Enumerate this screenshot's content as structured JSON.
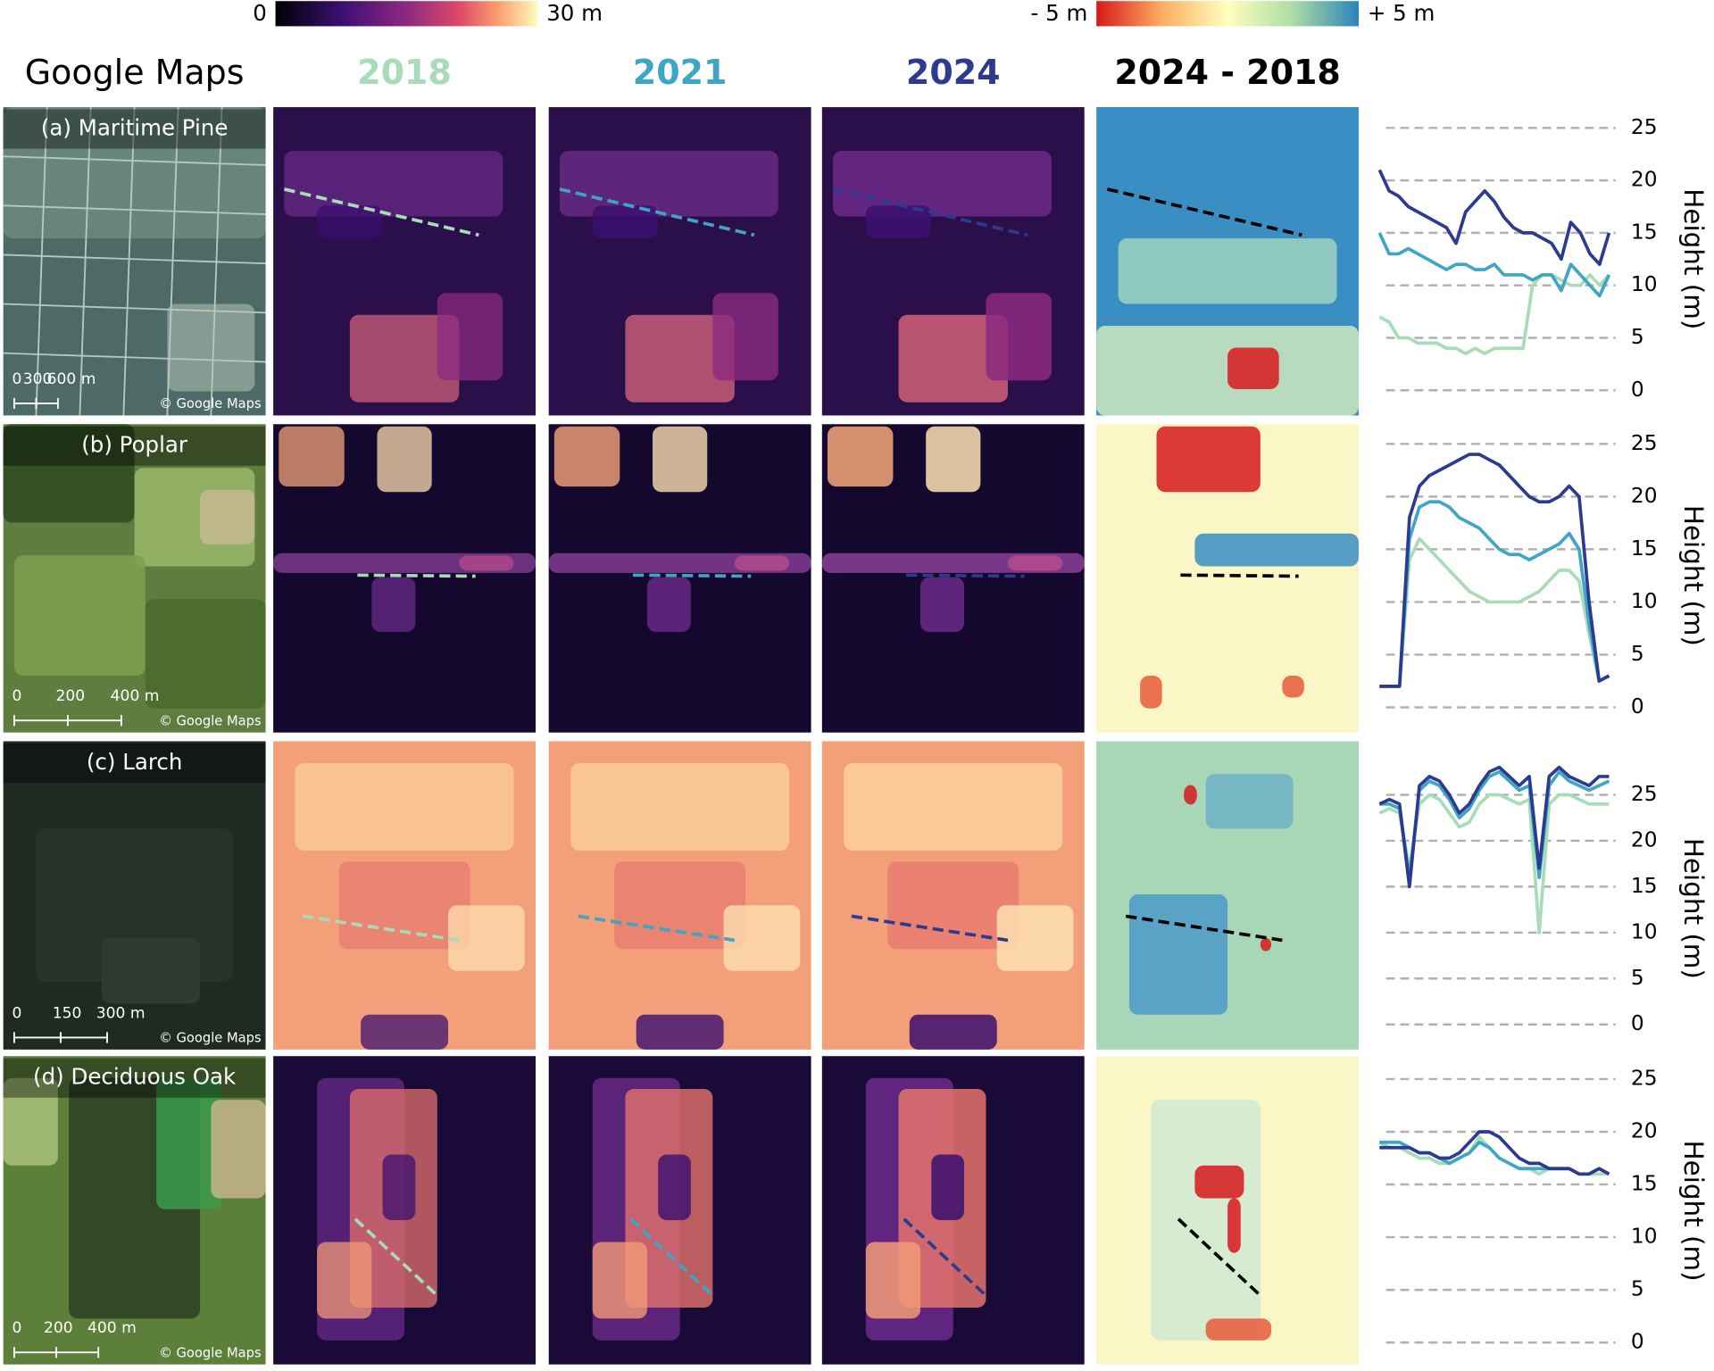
{
  "colorbars": [
    {
      "min_label": "0",
      "max_label": "30 m"
    },
    {
      "min_label": "- 5 m",
      "max_label": "+ 5 m"
    }
  ],
  "columns": [
    {
      "title": "Google Maps",
      "color": "#000000"
    },
    {
      "title": "2018",
      "color": "#a8dbb8"
    },
    {
      "title": "2021",
      "color": "#3fa5c4"
    },
    {
      "title": "2024",
      "color": "#2d3a8f"
    },
    {
      "title": "2024 - 2018",
      "color": "#000000"
    }
  ],
  "panels": [
    {
      "label": "(a) Maritime Pine",
      "scale_labels": [
        "0",
        "300",
        "600 m"
      ],
      "credit": "© Google Maps"
    },
    {
      "label": "(b) Poplar",
      "scale_labels": [
        "0",
        "200",
        "400 m"
      ],
      "credit": "© Google Maps"
    },
    {
      "label": "(c) Larch",
      "scale_labels": [
        "0",
        "150",
        "300 m"
      ],
      "credit": "© Google Maps"
    },
    {
      "label": "(d) Deciduous Oak",
      "scale_labels": [
        "0",
        "200",
        "400 m"
      ],
      "credit": "© Google Maps"
    }
  ],
  "chart_data": [
    {
      "type": "line",
      "y_label": "Height (m)",
      "ylim": [
        0,
        25
      ],
      "yticks": [
        0,
        5,
        10,
        15,
        20,
        25
      ],
      "grid": true,
      "series": [
        {
          "color": "#a8dbb8",
          "values": [
            7,
            6.5,
            5,
            5,
            4.5,
            4.5,
            4.5,
            4,
            4,
            3.5,
            4,
            3.5,
            4,
            4,
            4,
            4,
            10,
            11,
            11,
            10.5,
            10,
            10,
            11,
            10,
            11
          ]
        },
        {
          "color": "#3fa5c4",
          "values": [
            15,
            13,
            13,
            13.5,
            13,
            12.5,
            12,
            11.5,
            12,
            12,
            11.5,
            11.5,
            12,
            11,
            11,
            11,
            10.5,
            11,
            11,
            9.5,
            12,
            11,
            10,
            9,
            11
          ]
        },
        {
          "color": "#2d3a8f",
          "values": [
            21,
            19,
            18.5,
            17.5,
            17,
            16.5,
            16,
            15.5,
            14,
            17,
            18,
            19,
            18,
            16.5,
            15.5,
            15,
            15,
            14.5,
            14,
            12.5,
            16,
            15,
            13,
            12,
            15
          ]
        }
      ]
    },
    {
      "type": "line",
      "y_label": "Height (m)",
      "ylim": [
        0,
        25
      ],
      "yticks": [
        0,
        5,
        10,
        15,
        20,
        25
      ],
      "grid": true,
      "series": [
        {
          "color": "#a8dbb8",
          "values": [
            2,
            2,
            2,
            14,
            16,
            15,
            14,
            13,
            12,
            11,
            10.5,
            10,
            10,
            10,
            10,
            10.5,
            11,
            12,
            13,
            13,
            12,
            7,
            2.5,
            3
          ]
        },
        {
          "color": "#3fa5c4",
          "values": [
            2,
            2,
            2,
            16,
            19,
            19.5,
            19.5,
            19,
            18,
            17.5,
            17,
            16,
            15,
            14.5,
            14.5,
            14,
            14.5,
            15,
            15.5,
            16.5,
            15,
            8,
            2.5,
            3
          ]
        },
        {
          "color": "#2d3a8f",
          "values": [
            2,
            2,
            2,
            18,
            21,
            22,
            22.5,
            23,
            23.5,
            24,
            24,
            23.5,
            23,
            22,
            21,
            20,
            19.5,
            19.5,
            20,
            21,
            20,
            10,
            2.5,
            3
          ]
        }
      ]
    },
    {
      "type": "line",
      "y_label": "Height (m)",
      "ylim": [
        0,
        30
      ],
      "yticks": [
        0,
        5,
        10,
        15,
        20,
        25
      ],
      "grid": true,
      "series": [
        {
          "color": "#a8dbb8",
          "values": [
            23,
            23.5,
            23,
            17,
            24,
            25,
            24.5,
            23,
            21.5,
            22,
            24,
            25,
            25,
            24.5,
            24,
            24.5,
            10,
            24,
            25,
            25,
            24.5,
            24,
            24,
            24
          ]
        },
        {
          "color": "#3fa5c4",
          "values": [
            24,
            24,
            23.5,
            16,
            25.5,
            26.5,
            26,
            24.5,
            22.5,
            23.5,
            25.5,
            27,
            27.5,
            26.5,
            25.5,
            26,
            16,
            26,
            27.5,
            26.5,
            26,
            25.5,
            26,
            26.5
          ]
        },
        {
          "color": "#2d3a8f",
          "values": [
            24,
            24.5,
            24,
            15,
            26,
            27,
            26.5,
            25,
            23,
            24,
            26,
            27.5,
            28,
            27,
            26,
            27,
            17,
            27,
            28,
            27,
            26.5,
            26,
            27,
            27
          ]
        }
      ]
    },
    {
      "type": "line",
      "y_label": "Height (m)",
      "ylim": [
        0,
        25
      ],
      "yticks": [
        0,
        5,
        10,
        15,
        20,
        25
      ],
      "grid": true,
      "series": [
        {
          "color": "#a8dbb8",
          "values": [
            19,
            18.5,
            18.5,
            18,
            17.5,
            17.5,
            17,
            17,
            17.5,
            18,
            19.5,
            18.5,
            17.5,
            17,
            16.5,
            16.5,
            16,
            16.5,
            16.5,
            16.5,
            16,
            16,
            16,
            16
          ]
        },
        {
          "color": "#3fa5c4",
          "values": [
            19,
            19,
            19,
            18.5,
            18,
            18,
            17.5,
            17,
            17.5,
            18,
            19,
            18.5,
            17.5,
            17,
            16.5,
            16.5,
            16.5,
            16.5,
            16.5,
            16.5,
            16,
            16,
            16.5,
            16
          ]
        },
        {
          "color": "#2d3a8f",
          "values": [
            18.5,
            18.5,
            18.5,
            18.5,
            18,
            18,
            17.5,
            17.5,
            18,
            19,
            20,
            20,
            19.5,
            18.5,
            17.5,
            17,
            17,
            16.5,
            16.5,
            16.5,
            16,
            16,
            16.5,
            16
          ]
        }
      ]
    }
  ]
}
